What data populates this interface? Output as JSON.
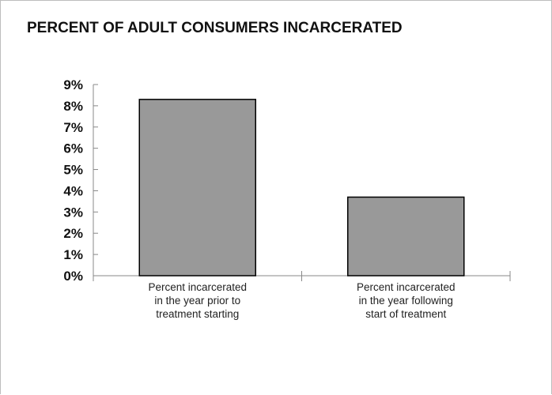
{
  "chart_data": {
    "type": "bar",
    "title": "PERCENT OF ADULT CONSUMERS INCARCERATED",
    "categories": [
      [
        "Percent incarcerated",
        "in the year prior to",
        "treatment starting"
      ],
      [
        "Percent incarcerated",
        "in the year following",
        "start of treatment"
      ]
    ],
    "values": [
      8.3,
      3.7
    ],
    "ylim": [
      0,
      9
    ],
    "yticks": [
      "0%",
      "1%",
      "2%",
      "3%",
      "4%",
      "5%",
      "6%",
      "7%",
      "8%",
      "9%"
    ],
    "xlabel": "",
    "ylabel": "",
    "grid": false,
    "bar_color": "#999999",
    "bar_edge_color": "#000000"
  }
}
